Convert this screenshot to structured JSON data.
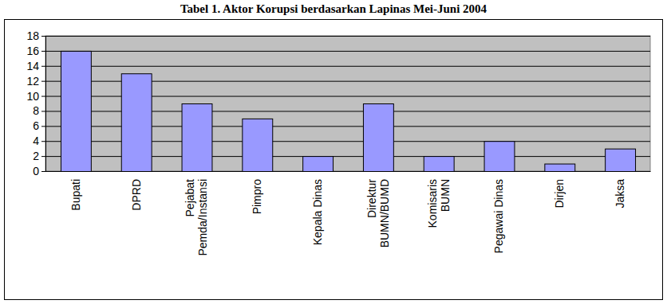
{
  "chart_data": {
    "type": "bar",
    "title": "Tabel 1. Aktor Korupsi berdasarkan Lapinas Mei-Juni 2004",
    "categories": [
      "Bupati",
      "DPRD",
      "Pejabat\nPemda/Instansi",
      "Pimpro",
      "Kepala Dinas",
      "Direktur\nBUMN/BUMD",
      "Komisaris\nBUMN",
      "Pegawai Dinas",
      "Dirjen",
      "Jaksa"
    ],
    "values": [
      16,
      13,
      9,
      7,
      2,
      9,
      2,
      4,
      1,
      3
    ],
    "color": "#9999ff",
    "ylim": [
      0,
      18
    ],
    "yticks": [
      0,
      2,
      4,
      6,
      8,
      10,
      12,
      14,
      16,
      18
    ],
    "grid": true
  }
}
